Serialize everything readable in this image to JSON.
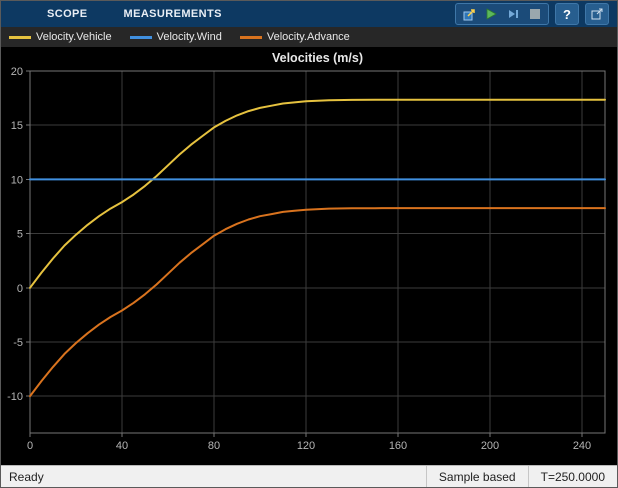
{
  "toolbar": {
    "tabs": [
      {
        "label": "SCOPE"
      },
      {
        "label": "MEASUREMENTS"
      }
    ],
    "help_glyph": "?",
    "buttons": [
      "highlight-simulink-block",
      "run",
      "step-forward",
      "stop",
      "help",
      "dock"
    ]
  },
  "legend": {
    "items": [
      {
        "label": "Velocity.Vehicle",
        "color": "#e6c23f"
      },
      {
        "label": "Velocity.Wind",
        "color": "#4090e0"
      },
      {
        "label": "Velocity.Advance",
        "color": "#d9731e"
      }
    ]
  },
  "chart_data": {
    "type": "line",
    "title": "Velocities (m/s)",
    "xlim": [
      0,
      250
    ],
    "ylim": [
      -13.4,
      20
    ],
    "xticks": [
      0,
      40,
      80,
      120,
      160,
      200,
      240
    ],
    "yticks": [
      -10,
      -5,
      0,
      5,
      10,
      15,
      20
    ],
    "grid": true,
    "background": "#000000",
    "series": [
      {
        "name": "Velocity.Vehicle",
        "color": "#e6c23f",
        "x": [
          0,
          5,
          10,
          15,
          20,
          25,
          30,
          35,
          40,
          45,
          50,
          55,
          60,
          65,
          70,
          75,
          80,
          85,
          90,
          95,
          100,
          105,
          110,
          115,
          120,
          130,
          140,
          150,
          160,
          180,
          200,
          220,
          240,
          250
        ],
        "y": [
          0,
          1.4,
          2.7,
          3.9,
          4.9,
          5.8,
          6.6,
          7.3,
          7.9,
          8.6,
          9.4,
          10.3,
          11.3,
          12.3,
          13.2,
          14.0,
          14.8,
          15.4,
          15.9,
          16.3,
          16.6,
          16.8,
          17.0,
          17.1,
          17.2,
          17.3,
          17.33,
          17.34,
          17.35,
          17.35,
          17.35,
          17.35,
          17.35,
          17.35
        ]
      },
      {
        "name": "Velocity.Wind",
        "color": "#4090e0",
        "x": [
          0,
          250
        ],
        "y": [
          10,
          10
        ]
      },
      {
        "name": "Velocity.Advance",
        "color": "#d9731e",
        "x": [
          0,
          5,
          10,
          15,
          20,
          25,
          30,
          35,
          40,
          45,
          50,
          55,
          60,
          65,
          70,
          75,
          80,
          85,
          90,
          95,
          100,
          105,
          110,
          115,
          120,
          130,
          140,
          150,
          160,
          180,
          200,
          220,
          240,
          250
        ],
        "y": [
          -10,
          -8.6,
          -7.3,
          -6.1,
          -5.1,
          -4.2,
          -3.4,
          -2.7,
          -2.1,
          -1.4,
          -0.6,
          0.3,
          1.3,
          2.3,
          3.2,
          4.0,
          4.8,
          5.4,
          5.9,
          6.3,
          6.6,
          6.8,
          7.0,
          7.1,
          7.2,
          7.3,
          7.33,
          7.34,
          7.35,
          7.35,
          7.35,
          7.35,
          7.35,
          7.35
        ]
      }
    ]
  },
  "status": {
    "ready": "Ready",
    "mode": "Sample based",
    "time": "T=250.0000"
  }
}
